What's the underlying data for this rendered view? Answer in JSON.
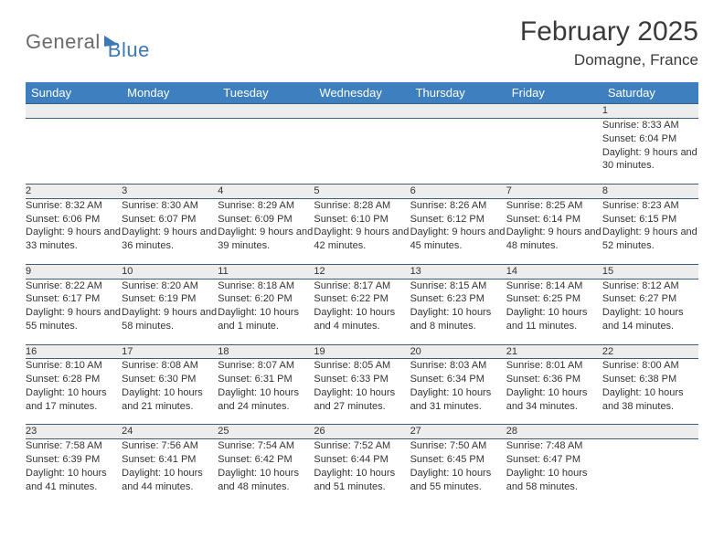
{
  "brand": {
    "part1": "General",
    "part2": "Blue"
  },
  "title": "February 2025",
  "location": "Domagne, France",
  "colors": {
    "header_bg": "#3d7fbf",
    "header_text": "#ffffff",
    "daynum_bg": "#ededed",
    "rule": "#3a5f7d",
    "text": "#333333",
    "brand_gray": "#6a6a6a",
    "brand_blue": "#3d79b3"
  },
  "weekdays": [
    "Sunday",
    "Monday",
    "Tuesday",
    "Wednesday",
    "Thursday",
    "Friday",
    "Saturday"
  ],
  "weeks": [
    [
      null,
      null,
      null,
      null,
      null,
      null,
      {
        "n": "1",
        "sunrise": "8:33 AM",
        "sunset": "6:04 PM",
        "daylight": "9 hours and 30 minutes."
      }
    ],
    [
      {
        "n": "2",
        "sunrise": "8:32 AM",
        "sunset": "6:06 PM",
        "daylight": "9 hours and 33 minutes."
      },
      {
        "n": "3",
        "sunrise": "8:30 AM",
        "sunset": "6:07 PM",
        "daylight": "9 hours and 36 minutes."
      },
      {
        "n": "4",
        "sunrise": "8:29 AM",
        "sunset": "6:09 PM",
        "daylight": "9 hours and 39 minutes."
      },
      {
        "n": "5",
        "sunrise": "8:28 AM",
        "sunset": "6:10 PM",
        "daylight": "9 hours and 42 minutes."
      },
      {
        "n": "6",
        "sunrise": "8:26 AM",
        "sunset": "6:12 PM",
        "daylight": "9 hours and 45 minutes."
      },
      {
        "n": "7",
        "sunrise": "8:25 AM",
        "sunset": "6:14 PM",
        "daylight": "9 hours and 48 minutes."
      },
      {
        "n": "8",
        "sunrise": "8:23 AM",
        "sunset": "6:15 PM",
        "daylight": "9 hours and 52 minutes."
      }
    ],
    [
      {
        "n": "9",
        "sunrise": "8:22 AM",
        "sunset": "6:17 PM",
        "daylight": "9 hours and 55 minutes."
      },
      {
        "n": "10",
        "sunrise": "8:20 AM",
        "sunset": "6:19 PM",
        "daylight": "9 hours and 58 minutes."
      },
      {
        "n": "11",
        "sunrise": "8:18 AM",
        "sunset": "6:20 PM",
        "daylight": "10 hours and 1 minute."
      },
      {
        "n": "12",
        "sunrise": "8:17 AM",
        "sunset": "6:22 PM",
        "daylight": "10 hours and 4 minutes."
      },
      {
        "n": "13",
        "sunrise": "8:15 AM",
        "sunset": "6:23 PM",
        "daylight": "10 hours and 8 minutes."
      },
      {
        "n": "14",
        "sunrise": "8:14 AM",
        "sunset": "6:25 PM",
        "daylight": "10 hours and 11 minutes."
      },
      {
        "n": "15",
        "sunrise": "8:12 AM",
        "sunset": "6:27 PM",
        "daylight": "10 hours and 14 minutes."
      }
    ],
    [
      {
        "n": "16",
        "sunrise": "8:10 AM",
        "sunset": "6:28 PM",
        "daylight": "10 hours and 17 minutes."
      },
      {
        "n": "17",
        "sunrise": "8:08 AM",
        "sunset": "6:30 PM",
        "daylight": "10 hours and 21 minutes."
      },
      {
        "n": "18",
        "sunrise": "8:07 AM",
        "sunset": "6:31 PM",
        "daylight": "10 hours and 24 minutes."
      },
      {
        "n": "19",
        "sunrise": "8:05 AM",
        "sunset": "6:33 PM",
        "daylight": "10 hours and 27 minutes."
      },
      {
        "n": "20",
        "sunrise": "8:03 AM",
        "sunset": "6:34 PM",
        "daylight": "10 hours and 31 minutes."
      },
      {
        "n": "21",
        "sunrise": "8:01 AM",
        "sunset": "6:36 PM",
        "daylight": "10 hours and 34 minutes."
      },
      {
        "n": "22",
        "sunrise": "8:00 AM",
        "sunset": "6:38 PM",
        "daylight": "10 hours and 38 minutes."
      }
    ],
    [
      {
        "n": "23",
        "sunrise": "7:58 AM",
        "sunset": "6:39 PM",
        "daylight": "10 hours and 41 minutes."
      },
      {
        "n": "24",
        "sunrise": "7:56 AM",
        "sunset": "6:41 PM",
        "daylight": "10 hours and 44 minutes."
      },
      {
        "n": "25",
        "sunrise": "7:54 AM",
        "sunset": "6:42 PM",
        "daylight": "10 hours and 48 minutes."
      },
      {
        "n": "26",
        "sunrise": "7:52 AM",
        "sunset": "6:44 PM",
        "daylight": "10 hours and 51 minutes."
      },
      {
        "n": "27",
        "sunrise": "7:50 AM",
        "sunset": "6:45 PM",
        "daylight": "10 hours and 55 minutes."
      },
      {
        "n": "28",
        "sunrise": "7:48 AM",
        "sunset": "6:47 PM",
        "daylight": "10 hours and 58 minutes."
      },
      null
    ]
  ],
  "labels": {
    "sunrise": "Sunrise:",
    "sunset": "Sunset:",
    "daylight": "Daylight:"
  }
}
